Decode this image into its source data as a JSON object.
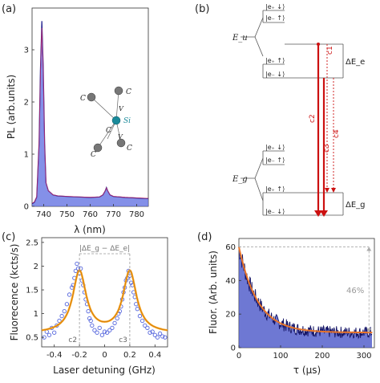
{
  "panel_labels": {
    "a": "(a)",
    "b": "(b)",
    "c": "(c)",
    "d": "(d)"
  },
  "chart_data": [
    {
      "panel": "a",
      "type": "line",
      "xlabel": "λ (nm)",
      "ylabel": "PL (arb.units)",
      "xlim": [
        735,
        785
      ],
      "ylim": [
        0,
        3.8
      ],
      "xticks": [
        740,
        750,
        760,
        770,
        780
      ],
      "yticks": [
        0,
        1,
        2,
        3
      ],
      "series": [
        {
          "color": "#1a1a8c",
          "fill": "#5b6be0",
          "x": [
            735,
            736,
            737,
            738,
            738.6,
            739.2,
            739.8,
            740.4,
            741,
            742,
            744,
            746,
            750,
            755,
            760,
            764,
            765.5,
            766.5,
            767,
            767.5,
            768.5,
            770,
            775,
            780,
            785
          ],
          "y": [
            0.05,
            0.08,
            0.18,
            1.2,
            2.6,
            3.55,
            2.7,
            1.2,
            0.45,
            0.3,
            0.22,
            0.2,
            0.19,
            0.18,
            0.17,
            0.18,
            0.22,
            0.3,
            0.36,
            0.3,
            0.22,
            0.19,
            0.17,
            0.16,
            0.15
          ]
        }
      ],
      "inset_labels": {
        "atom": "C",
        "center": "Si",
        "vacancy": "V"
      }
    },
    {
      "panel": "b",
      "type": "diagram",
      "levels": {
        "Eu_label": "E_u",
        "Eg_label": "E_g",
        "upper_top": [
          "|e₊ ↓⟩",
          "|e₋ ↑⟩"
        ],
        "upper_bottom": [
          "|e₊ ↑⟩",
          "|e₋ ↓⟩"
        ],
        "lower_top": [
          "|e₊ ↓⟩",
          "|e₋ ↑⟩"
        ],
        "lower_bottom": [
          "|e₊ ↑⟩",
          "|e₋ ↓⟩"
        ]
      },
      "deltas": {
        "excited": "ΔE_e",
        "ground": "ΔE_g"
      },
      "transitions": [
        "c1",
        "c2",
        "c3",
        "c4"
      ],
      "arrow_color": "#cc1010"
    },
    {
      "panel": "c",
      "type": "scatter",
      "xlabel": "Laser detuning (GHz)",
      "ylabel": "Fluorecence (kcts/s)",
      "xlim": [
        -0.5,
        0.5
      ],
      "ylim": [
        0.3,
        2.6
      ],
      "xticks": [
        -0.4,
        -0.2,
        0,
        0.2,
        0.4
      ],
      "yticks": [
        0.5,
        1,
        1.5,
        2,
        2.5
      ],
      "fit": {
        "baseline": 0.58,
        "amp": 1.3,
        "centers": [
          -0.2,
          0.2
        ],
        "width": 0.065,
        "color": "#f5a623"
      },
      "points": {
        "color": "#5566dd",
        "x": [
          -0.48,
          -0.46,
          -0.44,
          -0.42,
          -0.4,
          -0.38,
          -0.36,
          -0.34,
          -0.32,
          -0.3,
          -0.28,
          -0.26,
          -0.25,
          -0.24,
          -0.23,
          -0.22,
          -0.21,
          -0.2,
          -0.19,
          -0.18,
          -0.17,
          -0.16,
          -0.15,
          -0.14,
          -0.13,
          -0.12,
          -0.11,
          -0.1,
          -0.08,
          -0.06,
          -0.04,
          -0.02,
          0,
          0.02,
          0.04,
          0.06,
          0.08,
          0.1,
          0.11,
          0.12,
          0.13,
          0.14,
          0.15,
          0.16,
          0.17,
          0.18,
          0.19,
          0.2,
          0.21,
          0.22,
          0.23,
          0.24,
          0.25,
          0.26,
          0.28,
          0.3,
          0.32,
          0.34,
          0.36,
          0.38,
          0.4,
          0.42,
          0.44,
          0.46,
          0.48
        ],
        "y": [
          0.5,
          0.62,
          0.55,
          0.7,
          0.6,
          0.75,
          0.85,
          0.95,
          1.05,
          1.2,
          1.4,
          1.55,
          1.6,
          1.75,
          1.9,
          2.05,
          1.95,
          1.85,
          1.95,
          1.7,
          1.6,
          1.45,
          1.3,
          1.2,
          1.05,
          0.9,
          0.85,
          0.75,
          0.65,
          0.6,
          0.7,
          0.55,
          0.62,
          0.6,
          0.65,
          0.7,
          0.8,
          0.9,
          1.0,
          1.05,
          1.15,
          1.3,
          1.45,
          1.55,
          1.7,
          1.75,
          1.9,
          1.8,
          1.65,
          1.6,
          1.45,
          1.35,
          1.2,
          1.1,
          0.95,
          0.85,
          0.75,
          0.7,
          0.6,
          0.62,
          0.55,
          0.5,
          0.58,
          0.52,
          0.5
        ]
      },
      "annotations": {
        "c2": "c2",
        "c3": "c3",
        "bracket": "|ΔE_g − ΔE_e|"
      }
    },
    {
      "panel": "d",
      "type": "area",
      "xlabel": "τ (μs)",
      "ylabel": "Fluor. (Arb. units)",
      "xlim": [
        0,
        325
      ],
      "ylim": [
        0,
        65
      ],
      "xticks": [
        0,
        100,
        200,
        300
      ],
      "yticks": [
        0,
        20,
        40,
        60
      ],
      "fit": {
        "offset": 9,
        "amp": 51,
        "tau": 45,
        "color": "#e8742a"
      },
      "trace_color": "#141466",
      "fill_color": "#4a56c8",
      "annotation": "46%"
    }
  ]
}
